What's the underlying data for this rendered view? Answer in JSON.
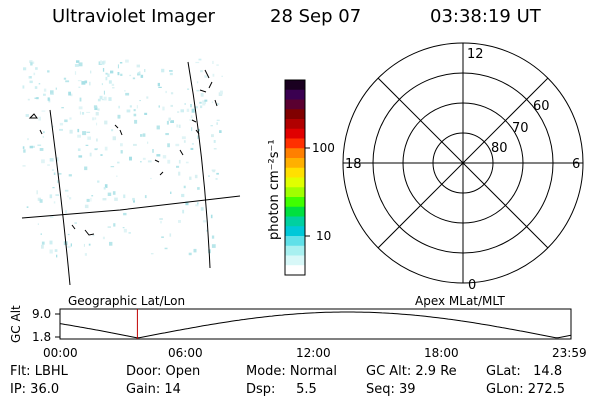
{
  "header": {
    "title": "Ultraviolet Imager",
    "date": "28 Sep 07",
    "time": "03:38:19 UT"
  },
  "colorbar": {
    "unit_label": "photon cm⁻²s⁻¹",
    "ticks": [
      "100",
      "10"
    ],
    "colors": [
      "#1a0020",
      "#3a0050",
      "#5a0030",
      "#800000",
      "#b00000",
      "#e00000",
      "#ff3000",
      "#ff8000",
      "#ffb000",
      "#ffe000",
      "#e0ff00",
      "#a0ff00",
      "#40ff00",
      "#00e040",
      "#00d0a0",
      "#00c8d8",
      "#60e0e8",
      "#a8f0f0",
      "#d8f8f8",
      "#ffffff"
    ]
  },
  "polar": {
    "labels_mlt": {
      "top": "12",
      "bottom": "0",
      "left": "18",
      "right": "6"
    },
    "labels_lat": [
      "60",
      "70",
      "80"
    ]
  },
  "map": {
    "left_label": "Geographic Lat/Lon",
    "right_label": "Apex MLat/MLT"
  },
  "alt_plot": {
    "ylabel": "GC Alt",
    "ytick_top": "9.0",
    "ytick_bottom": "1.8",
    "xticks": [
      "00:00",
      "06:00",
      "12:00",
      "18:00",
      "23:59"
    ],
    "marker_color": "#c00000"
  },
  "status": {
    "flt": "Flt: LBHL",
    "ip": "IP: 36.0",
    "door": "Door: Open",
    "gain": "Gain: 14",
    "mode": "Mode: Normal",
    "dsp": "Dsp:     5.5",
    "gcalt": "GC Alt: 2.9 Re",
    "seq": "Seq: 39",
    "glat": "GLat:   14.8",
    "glon": "GLon: 272.5"
  }
}
